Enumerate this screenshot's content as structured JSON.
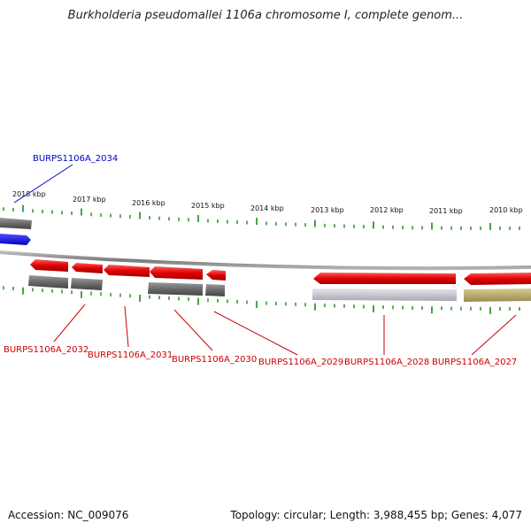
{
  "title": "Burkholderia pseudomallei 1106a chromosome I, complete genom...",
  "footer": {
    "accession": "Accession: NC_009076",
    "summary": "Topology: circular; Length: 3,988,455 bp; Genes: 4,077"
  },
  "scale_labels": [
    "2018 kbp",
    "2017 kbp",
    "2016 kbp",
    "2015 kbp",
    "2014 kbp",
    "2013 kbp",
    "2012 kbp",
    "2011 kbp",
    "2010 kbp"
  ],
  "gene_labels": [
    {
      "text": "BURPS1106A_2034",
      "color": "#0000cc"
    },
    {
      "text": "BURPS1106A_2032",
      "color": "#cc0000"
    },
    {
      "text": "BURPS1106A_2031",
      "color": "#cc0000"
    },
    {
      "text": "BURPS1106A_2030",
      "color": "#cc0000"
    },
    {
      "text": "BURPS1106A_2029",
      "color": "#cc0000"
    },
    {
      "text": "BURPS1106A_2028",
      "color": "#cc0000"
    },
    {
      "text": "BURPS1106A_2027",
      "color": "#cc0000"
    }
  ],
  "colors": {
    "forward_gene": "#e00000",
    "reverse_gene": "#1a1aff",
    "gray_feature": "#707070",
    "light_feature": "#bdbdc8",
    "olive_feature": "#b8aa6a",
    "tick": "#1a8a1a",
    "backbone": "#8a8a8a"
  }
}
